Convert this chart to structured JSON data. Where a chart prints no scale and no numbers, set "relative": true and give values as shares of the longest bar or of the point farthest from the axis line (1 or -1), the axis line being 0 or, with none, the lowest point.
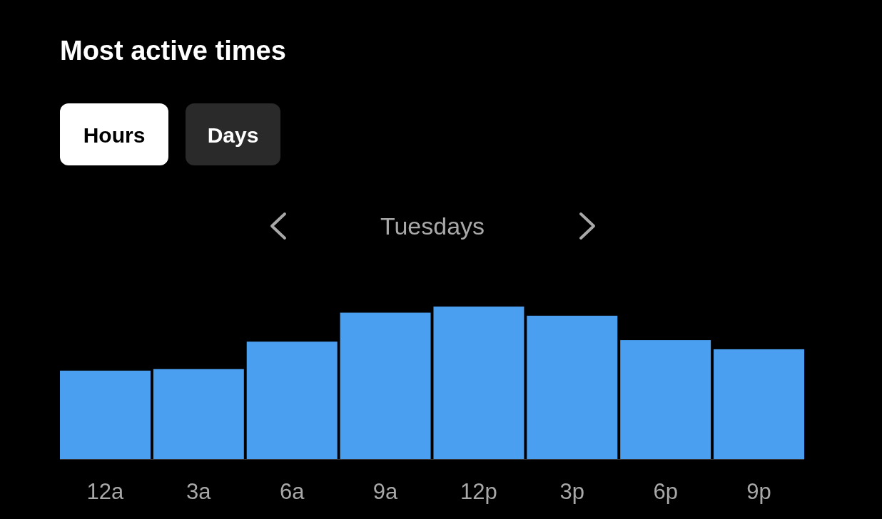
{
  "chart_data": {
    "type": "bar",
    "title": "Most active times",
    "subtitle": "Tuesdays",
    "annotations": [
      "Hours",
      "Days"
    ],
    "categories": [
      "12a",
      "3a",
      "6a",
      "9a",
      "12p",
      "3p",
      "6p",
      "9p"
    ],
    "values": [
      0.58,
      0.59,
      0.77,
      0.96,
      1,
      0.94,
      0.78,
      0.72
    ],
    "color": "#4a9ff0",
    "relative": true
  }
}
